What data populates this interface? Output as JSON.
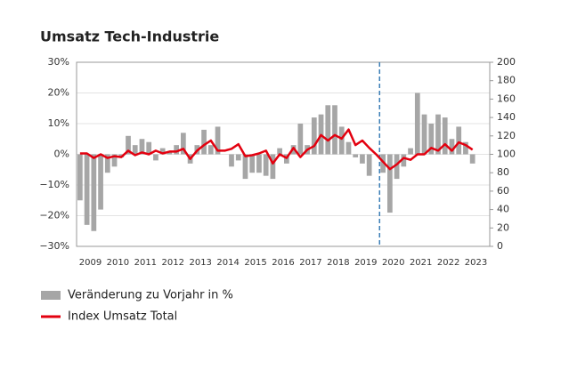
{
  "chart_data": {
    "type": "bar_line",
    "title": "Umsatz Tech-Industrie",
    "categories": [
      null,
      "2009",
      null,
      null,
      null,
      "2010",
      null,
      null,
      null,
      "2011",
      null,
      null,
      null,
      "2012",
      null,
      null,
      null,
      "2013",
      null,
      null,
      null,
      "2014",
      null,
      null,
      null,
      "2015",
      null,
      null,
      null,
      "2016",
      null,
      null,
      null,
      "2017",
      null,
      null,
      null,
      "2018",
      null,
      null,
      null,
      "2019",
      null,
      null,
      null,
      "2020",
      null,
      null,
      null,
      "2021",
      null,
      null,
      null,
      "2022",
      null,
      null,
      null,
      "2023",
      null,
      null
    ],
    "series": [
      {
        "name": "Veränderung zu Vorjahr in %",
        "color": "#a6a6a6",
        "type": "bar",
        "axis": "y",
        "values": [
          -15,
          -23,
          -25,
          -18,
          -6,
          -4,
          -1,
          6,
          3,
          5,
          4,
          -2,
          2,
          1,
          3,
          7,
          -3,
          3,
          8,
          3,
          9,
          0,
          -4,
          -2,
          -8,
          -6,
          -6,
          -7,
          -8,
          2,
          -3,
          3,
          10,
          3,
          12,
          13,
          16,
          16,
          9,
          4,
          -1,
          -3,
          -7,
          0,
          -6,
          -19,
          -8,
          -4,
          2,
          20,
          13,
          10,
          13,
          12,
          5,
          9,
          4,
          -3,
          null,
          null
        ]
      },
      {
        "name": "Index Umsatz Total",
        "color": "#e3000f",
        "type": "line",
        "axis": "y2",
        "values": [
          101,
          101,
          96,
          100,
          96,
          98,
          97,
          104,
          99,
          102,
          100,
          104,
          101,
          103,
          103,
          106,
          95,
          104,
          110,
          115,
          104,
          104,
          106,
          111,
          98,
          99,
          101,
          104,
          90,
          100,
          96,
          107,
          97,
          105,
          109,
          121,
          115,
          121,
          117,
          127,
          110,
          115,
          107,
          100,
          92,
          84,
          89,
          96,
          94,
          100,
          100,
          107,
          104,
          111,
          104,
          113,
          110,
          105,
          null,
          null
        ]
      }
    ],
    "ylim": [
      -30,
      30
    ],
    "yticks": [
      {
        "value": -30,
        "label": "−30%"
      },
      {
        "value": -20,
        "label": "−20%"
      },
      {
        "value": -10,
        "label": "−10%"
      },
      {
        "value": 0,
        "label": "0%"
      },
      {
        "value": 10,
        "label": "10%"
      },
      {
        "value": 20,
        "label": "20%"
      },
      {
        "value": 30,
        "label": "30%"
      }
    ],
    "y2lim": [
      0,
      200
    ],
    "y2ticks": [
      0,
      20,
      40,
      60,
      80,
      100,
      120,
      140,
      160,
      180,
      200
    ],
    "grid": true
  }
}
